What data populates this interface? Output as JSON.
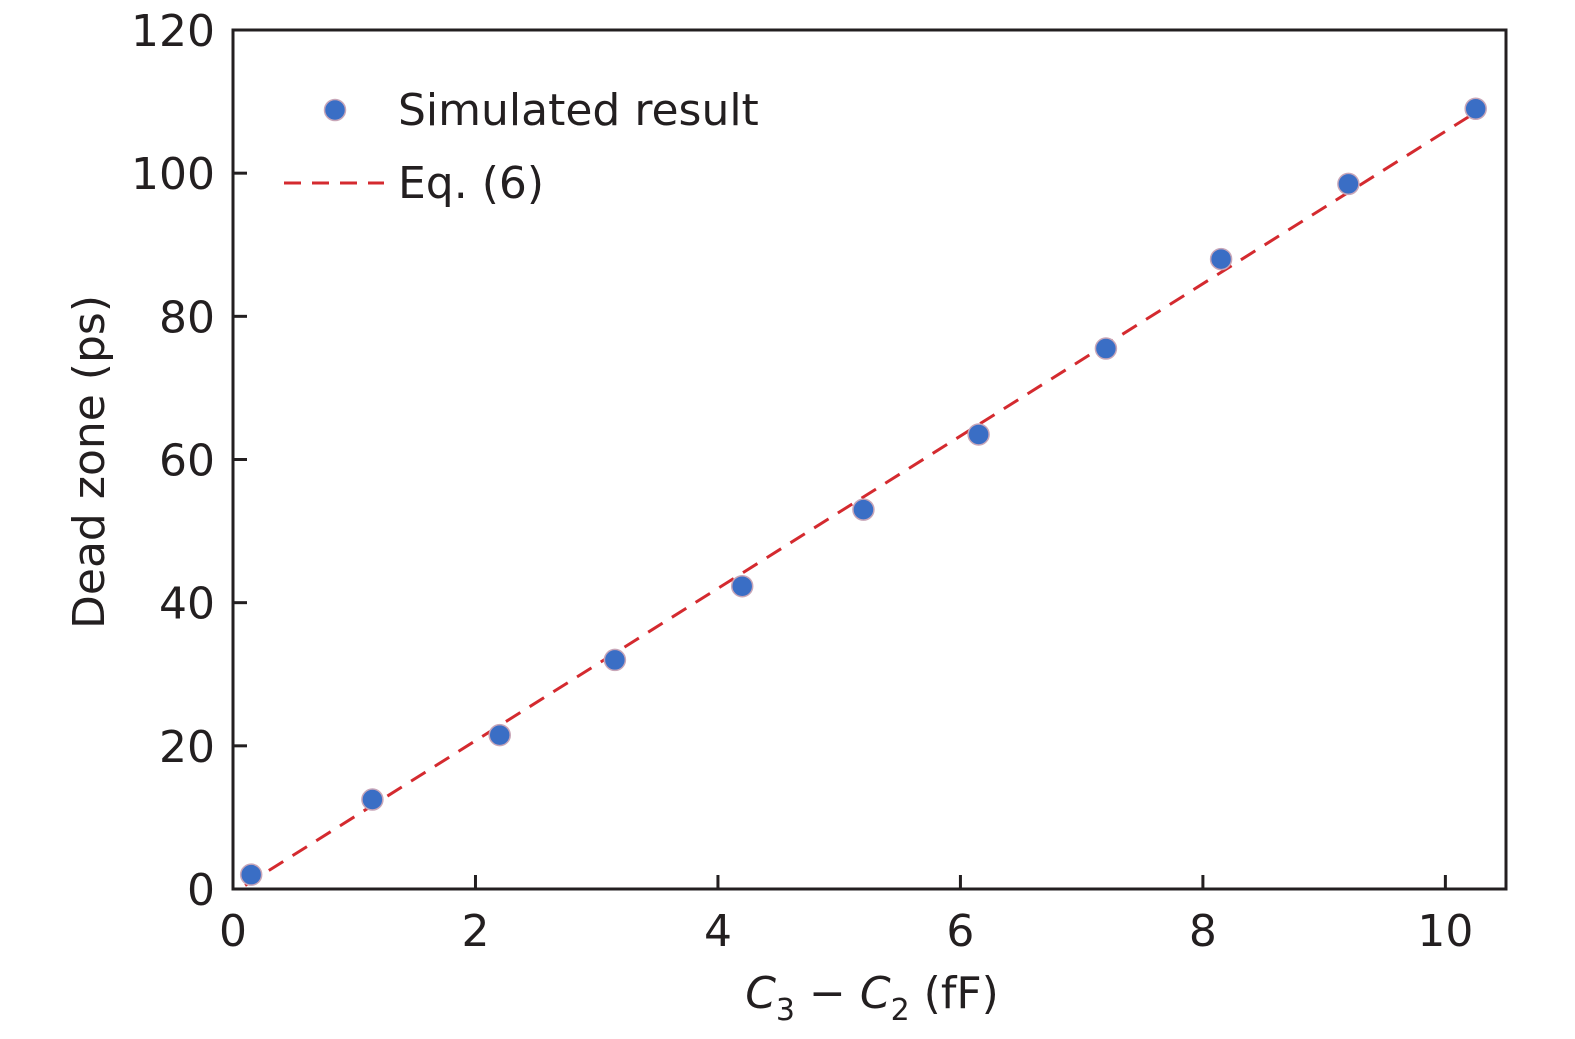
{
  "chart_data": {
    "type": "scatter",
    "title": "",
    "xlabel": "C3 − C2 (fF)",
    "xlabel_parts": {
      "c3": "C",
      "c3_sub": "3",
      "minus": " − ",
      "c2": "C",
      "c2_sub": "2",
      "unit": " (fF)"
    },
    "ylabel": "Dead zone (ps)",
    "xlim": [
      0,
      10.5
    ],
    "ylim": [
      0,
      120
    ],
    "xticks": [
      0,
      2,
      4,
      6,
      8,
      10
    ],
    "yticks": [
      0,
      20,
      40,
      60,
      80,
      100,
      120
    ],
    "grid": false,
    "legend_position": "top-left",
    "series": [
      {
        "name": "Simulated result",
        "kind": "markers",
        "color": "#3a6ec5",
        "x": [
          0.15,
          1.15,
          2.2,
          3.15,
          4.2,
          5.2,
          6.15,
          7.2,
          8.15,
          9.2,
          10.25
        ],
        "y": [
          2,
          12.5,
          21.5,
          32,
          42.3,
          53,
          63.5,
          75.5,
          88,
          98.5,
          109
        ]
      },
      {
        "name": "Eq. (6)",
        "kind": "dashed-line",
        "color": "#d42a2f",
        "x": [
          0.1,
          10.25
        ],
        "y": [
          0.5,
          108.5
        ]
      }
    ]
  }
}
